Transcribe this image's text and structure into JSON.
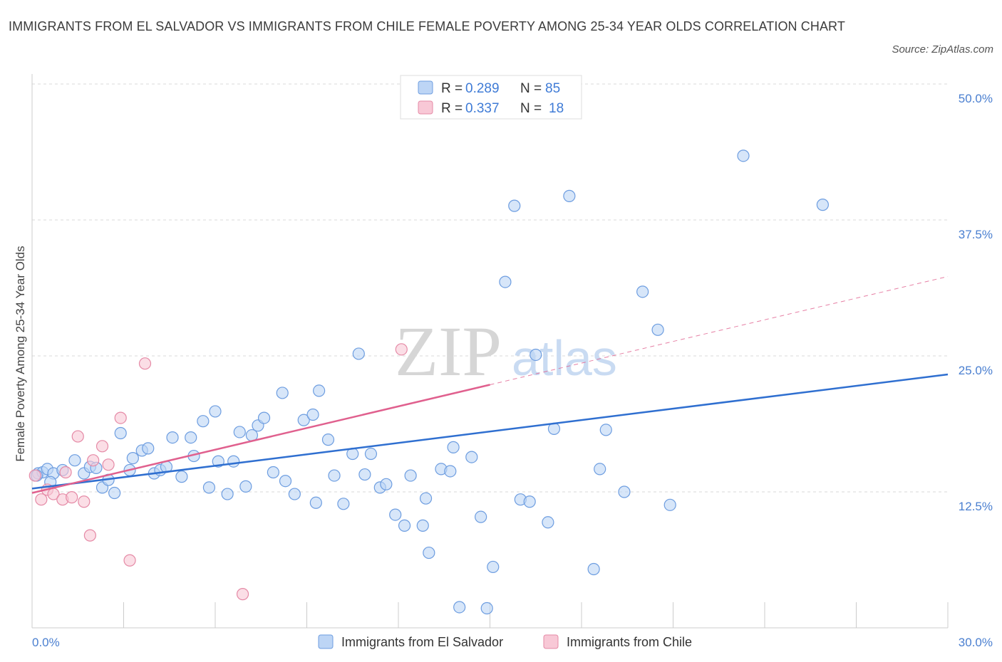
{
  "header": {
    "title": "IMMIGRANTS FROM EL SALVADOR VS IMMIGRANTS FROM CHILE FEMALE POVERTY AMONG 25-34 YEAR OLDS CORRELATION CHART",
    "source": "Source: ZipAtlas.com"
  },
  "watermark": {
    "zip": "ZIP",
    "atlas": "atlas"
  },
  "colors": {
    "series1_fill": "#bdd5f5",
    "series1_stroke": "#6d9de0",
    "series1_line": "#2f6fd0",
    "series2_fill": "#f8c8d6",
    "series2_stroke": "#e58aa6",
    "series2_line": "#e0608e",
    "grid": "#d8d8d8",
    "axis_text": "#4a7fd0"
  },
  "stats": [
    {
      "r_label": "R =",
      "r_value": "0.289",
      "n_label": "N =",
      "n_value": "85"
    },
    {
      "r_label": "R =",
      "r_value": "0.337",
      "n_label": "N =",
      "n_value": "18"
    }
  ],
  "chart_data": {
    "type": "scatter",
    "xlabel": "",
    "ylabel": "Female Poverty Among 25-34 Year Olds",
    "xlim": [
      0,
      30
    ],
    "ylim": [
      0,
      50
    ],
    "x_tick_labels": [
      "0.0%",
      "30.0%"
    ],
    "y_ticks": [
      12.5,
      25.0,
      37.5,
      50.0
    ],
    "y_tick_labels": [
      "12.5%",
      "25.0%",
      "37.5%",
      "50.0%"
    ],
    "grid": true,
    "legend_position": "bottom-center",
    "series": [
      {
        "name": "Immigrants from El Salvador",
        "trend": {
          "x": [
            0,
            30
          ],
          "y": [
            12.8,
            23.3
          ],
          "dashed_from": null
        },
        "points": [
          [
            0.2,
            14.2
          ],
          [
            0.35,
            14.3
          ],
          [
            0.5,
            14.6
          ],
          [
            0.7,
            14.2
          ],
          [
            1.0,
            14.5
          ],
          [
            1.4,
            15.4
          ],
          [
            1.7,
            14.2
          ],
          [
            1.9,
            14.8
          ],
          [
            2.1,
            14.7
          ],
          [
            2.3,
            12.9
          ],
          [
            2.5,
            13.6
          ],
          [
            2.7,
            12.4
          ],
          [
            2.9,
            17.9
          ],
          [
            3.2,
            14.5
          ],
          [
            3.3,
            15.6
          ],
          [
            3.6,
            16.3
          ],
          [
            3.8,
            16.5
          ],
          [
            4.0,
            14.2
          ],
          [
            4.2,
            14.5
          ],
          [
            4.4,
            14.8
          ],
          [
            4.6,
            17.5
          ],
          [
            4.9,
            13.9
          ],
          [
            5.2,
            17.5
          ],
          [
            5.3,
            15.8
          ],
          [
            5.6,
            19.0
          ],
          [
            5.8,
            12.9
          ],
          [
            6.0,
            19.9
          ],
          [
            6.1,
            15.3
          ],
          [
            6.4,
            12.3
          ],
          [
            6.6,
            15.3
          ],
          [
            6.8,
            18.0
          ],
          [
            7.0,
            13.0
          ],
          [
            7.2,
            17.7
          ],
          [
            7.4,
            18.6
          ],
          [
            7.6,
            19.3
          ],
          [
            7.9,
            14.3
          ],
          [
            8.2,
            21.6
          ],
          [
            8.3,
            13.5
          ],
          [
            8.6,
            12.3
          ],
          [
            8.9,
            19.1
          ],
          [
            9.2,
            19.6
          ],
          [
            9.3,
            11.5
          ],
          [
            9.4,
            21.8
          ],
          [
            9.7,
            17.3
          ],
          [
            9.9,
            14.0
          ],
          [
            10.2,
            11.4
          ],
          [
            10.5,
            16.0
          ],
          [
            10.7,
            25.2
          ],
          [
            10.9,
            14.1
          ],
          [
            11.1,
            16.0
          ],
          [
            11.4,
            12.9
          ],
          [
            11.6,
            13.2
          ],
          [
            11.9,
            10.4
          ],
          [
            12.2,
            9.4
          ],
          [
            12.4,
            14.0
          ],
          [
            12.8,
            9.4
          ],
          [
            12.9,
            11.9
          ],
          [
            13.0,
            6.9
          ],
          [
            13.4,
            14.6
          ],
          [
            13.7,
            14.4
          ],
          [
            13.8,
            16.6
          ],
          [
            14.0,
            1.9
          ],
          [
            14.4,
            15.7
          ],
          [
            14.7,
            10.2
          ],
          [
            14.9,
            1.8
          ],
          [
            15.1,
            5.6
          ],
          [
            15.5,
            31.8
          ],
          [
            15.8,
            38.8
          ],
          [
            16.0,
            11.8
          ],
          [
            16.3,
            11.6
          ],
          [
            16.5,
            25.1
          ],
          [
            16.9,
            9.7
          ],
          [
            17.1,
            18.3
          ],
          [
            17.6,
            39.7
          ],
          [
            18.4,
            5.4
          ],
          [
            18.6,
            14.6
          ],
          [
            18.8,
            18.2
          ],
          [
            19.4,
            12.5
          ],
          [
            20.0,
            30.9
          ],
          [
            20.5,
            27.4
          ],
          [
            20.9,
            11.3
          ],
          [
            23.3,
            43.4
          ],
          [
            25.9,
            38.9
          ],
          [
            0.15,
            14.0
          ],
          [
            0.6,
            13.4
          ]
        ]
      },
      {
        "name": "Immigrants from Chile",
        "trend": {
          "x": [
            0,
            30
          ],
          "y": [
            12.4,
            32.3
          ],
          "dashed_from": 15.0
        },
        "points": [
          [
            0.1,
            14.0
          ],
          [
            0.3,
            11.8
          ],
          [
            0.5,
            12.7
          ],
          [
            0.7,
            12.3
          ],
          [
            1.0,
            11.8
          ],
          [
            1.1,
            14.3
          ],
          [
            1.3,
            12.0
          ],
          [
            1.5,
            17.6
          ],
          [
            1.7,
            11.6
          ],
          [
            1.9,
            8.5
          ],
          [
            2.0,
            15.4
          ],
          [
            2.3,
            16.7
          ],
          [
            2.5,
            15.0
          ],
          [
            2.9,
            19.3
          ],
          [
            3.2,
            6.2
          ],
          [
            3.7,
            24.3
          ],
          [
            6.9,
            3.1
          ],
          [
            12.1,
            25.6
          ]
        ]
      }
    ]
  }
}
